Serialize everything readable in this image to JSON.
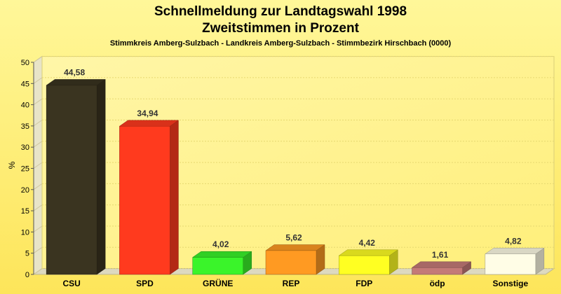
{
  "chart_data": {
    "type": "bar",
    "title": "Schnellmeldung zur Landtagswahl 1998",
    "title2": "Zweitstimmen in Prozent",
    "subtitle": "Stimmkreis Amberg-Sulzbach - Landkreis Amberg-Sulzbach - Stimmbezirk Hirschbach (0000)",
    "ylabel": "%",
    "xlabel": "",
    "ylim": [
      0,
      50
    ],
    "yticks": [
      "0",
      "5",
      "10",
      "15",
      "20",
      "25",
      "30",
      "35",
      "40",
      "45",
      "50"
    ],
    "grid": true,
    "categories": [
      "CSU",
      "SPD",
      "GRÜNE",
      "REP",
      "FDP",
      "ödp",
      "Sonstige"
    ],
    "values": [
      44.58,
      34.94,
      4.02,
      5.62,
      4.42,
      1.61,
      4.82
    ],
    "value_labels": [
      "44,58",
      "34,94",
      "4,02",
      "5,62",
      "4,42",
      "1,61",
      "4,82"
    ],
    "colors": [
      "#3a3420",
      "#ff3a1e",
      "#3af42a",
      "#ff9a22",
      "#ffff22",
      "#c47a78",
      "#fffde6"
    ]
  }
}
